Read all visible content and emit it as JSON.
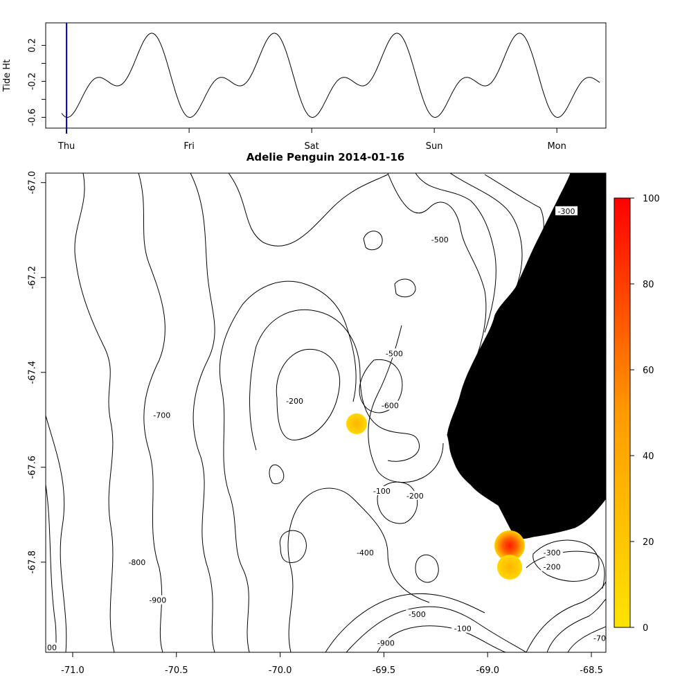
{
  "title": "Adelie Penguin 2014-01-16",
  "chart_data": [
    {
      "type": "line",
      "name": "tide",
      "ylabel": "Tide Ht",
      "xlabel": "",
      "x_tick_labels": [
        "Thu",
        "Fri",
        "Sat",
        "Sun",
        "Mon"
      ],
      "y_ticks": [
        0.2,
        -0.2,
        -0.6
      ],
      "y_tick_labels": [
        "0.2",
        "-0.2",
        "-0.6"
      ],
      "ylim": [
        -0.72,
        0.45
      ],
      "xlim_days": [
        -0.17,
        4.4
      ],
      "current_time_day": 0.0,
      "current_time_color": "#0000cc",
      "line_color": "#000000",
      "tide": {
        "mean": -0.16,
        "components": [
          {
            "amp": 0.31,
            "period_days": 1.0,
            "phase_day": 0.62
          },
          {
            "amp": 0.23,
            "period_days": 0.5,
            "phase_day": 0.22
          }
        ],
        "x_end_day": 4.35
      }
    },
    {
      "type": "heatmap",
      "name": "map",
      "title": "Adelie Penguin 2014-01-16",
      "x_ticks": [
        -71.0,
        -70.5,
        -70.0,
        -69.5,
        -69.0,
        -68.5
      ],
      "x_tick_labels": [
        "-71.0",
        "-70.5",
        "-70.0",
        "-69.5",
        "-69.0",
        "-68.5"
      ],
      "y_ticks": [
        -67.0,
        -67.2,
        -67.4,
        -67.6,
        -67.8
      ],
      "y_tick_labels": [
        "-67.0",
        "-67.2",
        "-67.4",
        "-67.6",
        "-67.8"
      ],
      "xlim": [
        -71.13,
        -68.43
      ],
      "ylim": [
        -67.99,
        -66.98
      ],
      "contour_labels": [
        {
          "text": "-300",
          "lon": -68.62,
          "lat": -67.06
        },
        {
          "text": "-500",
          "lon": -69.23,
          "lat": -67.12
        },
        {
          "text": "-500",
          "lon": -69.45,
          "lat": -67.36
        },
        {
          "text": "-200",
          "lon": -69.93,
          "lat": -67.46
        },
        {
          "text": "-600",
          "lon": -69.47,
          "lat": -67.47
        },
        {
          "text": "-700",
          "lon": -70.57,
          "lat": -67.49
        },
        {
          "text": "-100",
          "lon": -69.51,
          "lat": -67.65
        },
        {
          "text": "-200",
          "lon": -69.35,
          "lat": -67.66
        },
        {
          "text": "-400",
          "lon": -69.59,
          "lat": -67.78
        },
        {
          "text": "-300",
          "lon": -68.69,
          "lat": -67.78
        },
        {
          "text": "-800",
          "lon": -70.69,
          "lat": -67.8
        },
        {
          "text": "-200",
          "lon": -68.69,
          "lat": -67.81
        },
        {
          "text": "-900",
          "lon": -70.59,
          "lat": -67.88
        },
        {
          "text": "-500",
          "lon": -69.34,
          "lat": -67.91
        },
        {
          "text": "-100",
          "lon": -69.12,
          "lat": -67.94
        },
        {
          "text": "-900",
          "lon": -69.49,
          "lat": -67.97
        },
        {
          "text": "-70",
          "lon": -68.46,
          "lat": -67.96
        },
        {
          "text": "00",
          "lon": -71.1,
          "lat": -67.98
        }
      ],
      "hotspots": [
        {
          "lon": -69.63,
          "lat": -67.512,
          "value": 3
        },
        {
          "lon": -68.91,
          "lat": -67.772,
          "value": 100
        },
        {
          "lon": -68.91,
          "lat": -67.822,
          "value": 8
        }
      ],
      "land_color": "#000000",
      "colorbar": {
        "ticks": [
          0,
          20,
          40,
          60,
          80,
          100
        ],
        "tick_labels": [
          "0",
          "20",
          "40",
          "60",
          "80",
          "100"
        ],
        "range": [
          0,
          100
        ],
        "color_low": "#ffe400",
        "color_high": "#ff0000"
      }
    }
  ]
}
